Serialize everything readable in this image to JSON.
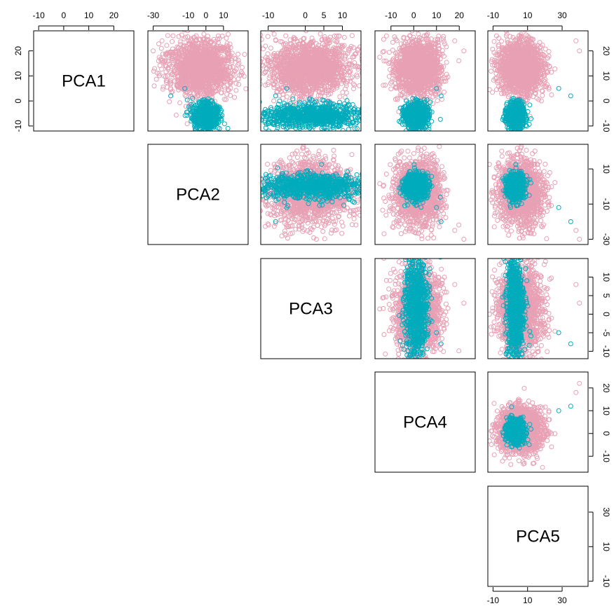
{
  "chart_data": {
    "type": "scatter",
    "variables": [
      "PCA1",
      "PCA2",
      "PCA3",
      "PCA4",
      "PCA5"
    ],
    "layout": "upper-triangle",
    "axis_ranges": {
      "PCA1": [
        -12,
        28
      ],
      "PCA2": [
        -33,
        24
      ],
      "PCA3": [
        -12,
        15
      ],
      "PCA4": [
        -17,
        27
      ],
      "PCA5": [
        -13,
        45
      ]
    },
    "ticks": {
      "PCA1": [
        -10,
        0,
        10,
        20
      ],
      "PCA2": [
        -30,
        -10,
        10
      ],
      "PCA3": [
        -10,
        -5,
        0,
        5,
        10
      ],
      "PCA4": [
        -10,
        0,
        10,
        20
      ],
      "PCA5": [
        -10,
        10,
        30
      ]
    },
    "tick_labels": {
      "PCA1": [
        "-10",
        "0",
        "10",
        "20"
      ],
      "PCA2": [
        "-30",
        "-10",
        "10"
      ],
      "PCA3": [
        "-10",
        "-5",
        "0",
        "5",
        "10"
      ],
      "PCA4": [
        "-10",
        "0",
        "10",
        "20"
      ],
      "PCA5": [
        "-10",
        "10",
        "30"
      ]
    },
    "top_axis_ticks": {
      "PCA1": [
        "-10",
        "0",
        "10",
        "20"
      ],
      "PCA2": [
        "-30",
        "-10",
        "0",
        "10"
      ],
      "PCA3": [
        "-10",
        "0",
        "5",
        "10"
      ],
      "PCA4": [
        "-10",
        "0",
        "10",
        "20"
      ],
      "PCA5": [
        "-10",
        "10",
        "30"
      ]
    },
    "series_colors": {
      "group_a": "#e8a0b4",
      "group_b": "#00acbc"
    },
    "groups": [
      {
        "color": "#e8a0b4",
        "n": 1600,
        "mean": [
          13,
          -3,
          1,
          2,
          6
        ],
        "sd": [
          5.5,
          9,
          5.5,
          5,
          6
        ]
      },
      {
        "color": "#00acbc",
        "n": 900,
        "mean": [
          -6,
          0,
          2,
          1,
          3
        ],
        "sd": [
          2.5,
          3.5,
          7,
          2.5,
          2.5
        ]
      }
    ],
    "outliers": [
      {
        "group": "#00acbc",
        "vars": {
          "PCA1": 2,
          "PCA2": -20,
          "PCA3": -8,
          "PCA4": 12,
          "PCA5": 35
        }
      },
      {
        "group": "#00acbc",
        "vars": {
          "PCA1": 5,
          "PCA2": -12,
          "PCA3": -5,
          "PCA4": 10,
          "PCA5": 28
        }
      },
      {
        "group": "#e8a0b4",
        "vars": {
          "PCA1": 20,
          "PCA2": -30,
          "PCA3": 3,
          "PCA4": 22,
          "PCA5": 40
        }
      },
      {
        "group": "#e8a0b4",
        "vars": {
          "PCA1": 24,
          "PCA2": -25,
          "PCA3": 8,
          "PCA4": 18,
          "PCA5": 38
        }
      }
    ],
    "grid": false,
    "legend": "none"
  }
}
